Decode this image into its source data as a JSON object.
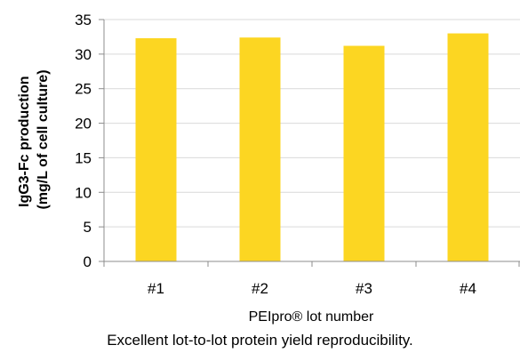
{
  "chart_data": {
    "type": "bar",
    "categories": [
      "#1",
      "#2",
      "#3",
      "#4"
    ],
    "values": [
      32.3,
      32.4,
      31.2,
      33.0
    ],
    "xlabel": "PEIpro® lot number",
    "ylabel": [
      "IgG3-Fc production",
      "(mg/L of cell culture)"
    ],
    "ylim": [
      0,
      35
    ],
    "yticks": [
      "0",
      "5",
      "10",
      "15",
      "20",
      "25",
      "30",
      "35"
    ],
    "grid": true,
    "legend": "none",
    "bar_color": "#FCD622",
    "grid_color": "#D9D9D9",
    "axis_color": "#8C8C8C"
  },
  "caption": "Excellent lot-to-lot protein yield reproducibility."
}
